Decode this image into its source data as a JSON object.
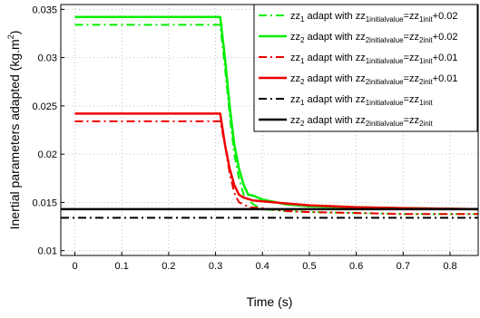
{
  "chart_data": {
    "type": "line",
    "xlabel": "Time (s)",
    "ylabel_main": "Inertial parameters adapted (kg.m",
    "ylabel_sup": "2",
    "ylabel_end": ")",
    "xlim": [
      -0.03,
      0.86
    ],
    "ylim": [
      0.0095,
      0.0355
    ],
    "xticks": [
      0,
      0.1,
      0.2,
      0.3,
      0.4,
      0.5,
      0.6,
      0.7,
      0.8
    ],
    "xtick_labels": [
      "0",
      "0.1",
      "0.2",
      "0.3",
      "0.4",
      "0.5",
      "0.6",
      "0.7",
      "0.8"
    ],
    "yticks": [
      0.01,
      0.015,
      0.02,
      0.025,
      0.03,
      0.035
    ],
    "ytick_labels": [
      "0.01",
      "0.015",
      "0.02",
      "0.025",
      "0.03",
      "0.035"
    ],
    "grid": true,
    "legend_position": "top-right",
    "series": [
      {
        "legend": {
          "a": "zz",
          "as": "1",
          "b": " adapt with zz",
          "bs": "1initialvalue",
          "c": "=zz",
          "cs": "1init",
          "d": "+0.02"
        },
        "color": "#00ee00",
        "style": "dashdot",
        "width": 2,
        "x": [
          0,
          0.31,
          0.32,
          0.33,
          0.34,
          0.35,
          0.36,
          0.38,
          0.4,
          0.45,
          0.5,
          0.6,
          0.7,
          0.86
        ],
        "y": [
          0.0334,
          0.0334,
          0.029,
          0.024,
          0.02,
          0.0175,
          0.0158,
          0.0148,
          0.0143,
          0.0141,
          0.014,
          0.0139,
          0.0138,
          0.0138
        ]
      },
      {
        "legend": {
          "a": "zz",
          "as": "2",
          "b": " adapt with zz",
          "bs": "2initialvalue",
          "c": "=zz",
          "cs": "2init",
          "d": "+0.02"
        },
        "color": "#00ee00",
        "style": "solid",
        "width": 2.5,
        "x": [
          0,
          0.31,
          0.32,
          0.33,
          0.34,
          0.35,
          0.36,
          0.37,
          0.38,
          0.4,
          0.45,
          0.5,
          0.6,
          0.7,
          0.86
        ],
        "y": [
          0.0342,
          0.0342,
          0.03,
          0.025,
          0.021,
          0.0185,
          0.0168,
          0.0158,
          0.0157,
          0.0153,
          0.0148,
          0.0146,
          0.0145,
          0.0144,
          0.0143
        ]
      },
      {
        "legend": {
          "a": "zz",
          "as": "1",
          "b": " adapt with zz",
          "bs": "1initialvalue",
          "c": "=zz",
          "cs": "1init",
          "d": "+0.01"
        },
        "color": "#ee0000",
        "style": "dashdot",
        "width": 2,
        "x": [
          0,
          0.31,
          0.32,
          0.33,
          0.34,
          0.35,
          0.36,
          0.37,
          0.4,
          0.45,
          0.5,
          0.6,
          0.7,
          0.86
        ],
        "y": [
          0.0234,
          0.0234,
          0.021,
          0.018,
          0.016,
          0.015,
          0.0148,
          0.0145,
          0.0144,
          0.0141,
          0.014,
          0.0139,
          0.0138,
          0.0138
        ]
      },
      {
        "legend": {
          "a": "zz",
          "as": "2",
          "b": " adapt with zz",
          "bs": "2initialvalue",
          "c": "=zz",
          "cs": "2init",
          "d": "+0.01"
        },
        "color": "#ee0000",
        "style": "solid",
        "width": 2.5,
        "x": [
          0,
          0.31,
          0.32,
          0.33,
          0.34,
          0.35,
          0.36,
          0.38,
          0.4,
          0.45,
          0.5,
          0.6,
          0.7,
          0.86
        ],
        "y": [
          0.0242,
          0.0242,
          0.021,
          0.0185,
          0.0168,
          0.0158,
          0.0155,
          0.0152,
          0.0151,
          0.0149,
          0.0147,
          0.0145,
          0.0144,
          0.0143
        ]
      },
      {
        "legend": {
          "a": "zz",
          "as": "1",
          "b": " adapt with zz",
          "bs": "1initialvalue",
          "c": "=zz",
          "cs": "1init",
          "d": ""
        },
        "color": "#000000",
        "style": "dashdot",
        "width": 2,
        "x": [
          -0.03,
          0.86
        ],
        "y": [
          0.0134,
          0.0134
        ]
      },
      {
        "legend": {
          "a": "zz",
          "as": "2",
          "b": " adapt with zz",
          "bs": "2initialvalue",
          "c": "=zz",
          "cs": "2init",
          "d": ""
        },
        "color": "#000000",
        "style": "solid",
        "width": 2.5,
        "x": [
          -0.03,
          0.86
        ],
        "y": [
          0.0143,
          0.0143
        ]
      }
    ]
  }
}
